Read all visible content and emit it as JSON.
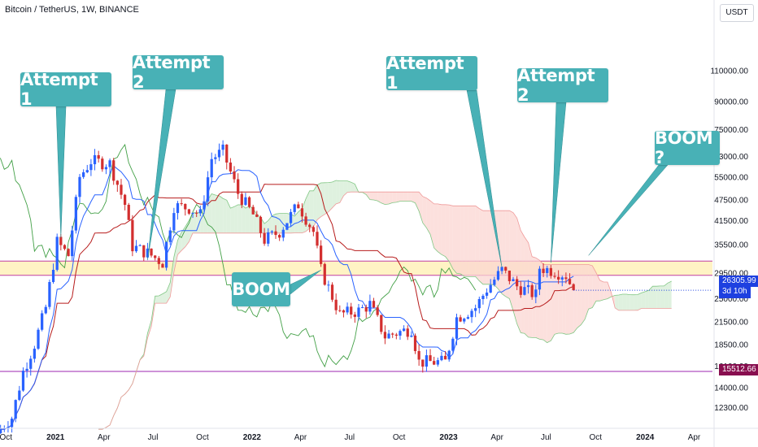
{
  "header": {
    "title": "Bitcoin / TetherUS, 1W, BINANCE",
    "currency": "USDT"
  },
  "annotations": {
    "attempt1_left": "Attempt 1",
    "attempt2_left": "Attempt 2",
    "attempt1_right": "Attempt 1",
    "attempt2_right": "Attempt 2",
    "boom": "BOOM",
    "boom_question": "BOOM ?"
  },
  "price_labels": {
    "current_price": "26305.99",
    "countdown": "3d 10h",
    "support": "15512.66"
  },
  "colors": {
    "up": "#2962ff",
    "down": "#d32f2f",
    "callout": "#48b1b6",
    "resistance_zone": "#fff3c4",
    "zone_line": "#c03fa3",
    "support_line": "#9c27b0",
    "support_label_bg": "#880e4f",
    "price_label_bg": "#1e40e0",
    "tenkan": "#2962ff",
    "kijun": "#b71c1c",
    "chikou": "#43a047",
    "cloud_bull": "#d4ecd4",
    "cloud_bear": "#fbd5d2"
  },
  "chart_data": {
    "type": "candlestick",
    "title": "Bitcoin / TetherUS, 1W, BINANCE",
    "scale": "log",
    "y_range": [
      11000,
      150000
    ],
    "y_ticks": [
      110000,
      90000,
      75000,
      63000,
      55000,
      47500,
      41500,
      35500,
      29500,
      25000,
      21500,
      18500,
      16100,
      14000,
      12300
    ],
    "y_tick_labels": [
      "110000.00",
      "90000.00",
      "75000.00",
      "63000.00",
      "55000.00",
      "47500.00",
      "41500.00",
      "35500.00",
      "29500.00",
      "25000.00",
      "21500.00",
      "18500.00",
      "16100.00",
      "14000.00",
      "12300.00"
    ],
    "x_range": [
      "2020-09-20",
      "2024-05-05"
    ],
    "x_ticks": [
      "2020-10-01",
      "2021-01-01",
      "2021-04-01",
      "2021-07-01",
      "2021-10-01",
      "2022-01-01",
      "2022-04-01",
      "2022-07-01",
      "2022-10-01",
      "2023-01-01",
      "2023-04-01",
      "2023-07-01",
      "2023-10-01",
      "2024-01-01",
      "2024-04-01"
    ],
    "x_tick_labels": [
      "Oct",
      "2021",
      "Apr",
      "Jul",
      "Oct",
      "2022",
      "Apr",
      "Jul",
      "Oct",
      "2023",
      "Apr",
      "Jul",
      "Oct",
      "2024",
      "Apr"
    ],
    "resistance_zone": [
      29000,
      31800
    ],
    "support_level": 15512.66,
    "last_price": 26305.99,
    "close_path": [
      [
        "2020-09-21",
        10700
      ],
      [
        "2020-10-12",
        11500
      ],
      [
        "2020-11-02",
        15500
      ],
      [
        "2020-11-23",
        18500
      ],
      [
        "2020-12-14",
        23500
      ],
      [
        "2021-01-04",
        36000
      ],
      [
        "2021-01-25",
        33000
      ],
      [
        "2021-02-15",
        55000
      ],
      [
        "2021-03-08",
        61000
      ],
      [
        "2021-04-12",
        60000
      ],
      [
        "2021-05-10",
        46000
      ],
      [
        "2021-05-24",
        35000
      ],
      [
        "2021-06-21",
        33500
      ],
      [
        "2021-07-19",
        31500
      ],
      [
        "2021-08-09",
        45500
      ],
      [
        "2021-09-06",
        45000
      ],
      [
        "2021-09-27",
        43000
      ],
      [
        "2021-10-18",
        62000
      ],
      [
        "2021-11-08",
        65000
      ],
      [
        "2021-12-06",
        49500
      ],
      [
        "2022-01-03",
        43000
      ],
      [
        "2022-01-24",
        36500
      ],
      [
        "2022-02-21",
        38500
      ],
      [
        "2022-03-28",
        46000
      ],
      [
        "2022-04-25",
        38500
      ],
      [
        "2022-05-09",
        30000
      ],
      [
        "2022-06-13",
        22500
      ],
      [
        "2022-07-18",
        23000
      ],
      [
        "2022-08-08",
        24000
      ],
      [
        "2022-09-05",
        19500
      ],
      [
        "2022-10-24",
        20500
      ],
      [
        "2022-11-07",
        16500
      ],
      [
        "2022-12-26",
        16500
      ],
      [
        "2023-01-16",
        22000
      ],
      [
        "2023-02-20",
        23500
      ],
      [
        "2023-03-13",
        26500
      ],
      [
        "2023-04-10",
        30000
      ],
      [
        "2023-05-08",
        27000
      ],
      [
        "2023-06-12",
        25500
      ],
      [
        "2023-06-19",
        30500
      ],
      [
        "2023-07-17",
        29800
      ],
      [
        "2023-08-07",
        29000
      ],
      [
        "2023-08-21",
        26305.99
      ]
    ],
    "series": [
      {
        "name": "Tenkan-sen"
      },
      {
        "name": "Kijun-sen"
      },
      {
        "name": "Chikou span"
      },
      {
        "name": "Kumo cloud"
      }
    ],
    "events": [
      {
        "label": "Attempt 1",
        "date": "2021-01-11",
        "price": 37000
      },
      {
        "label": "Attempt 2",
        "date": "2021-06-21",
        "price": 32000
      },
      {
        "label": "BOOM",
        "date": "2022-05-09",
        "price": 30000
      },
      {
        "label": "Attempt 1",
        "date": "2023-04-10",
        "price": 30500
      },
      {
        "label": "Attempt 2",
        "date": "2023-07-10",
        "price": 31500
      },
      {
        "label": "BOOM ?",
        "date": "2023-09-18",
        "price": 33000
      }
    ]
  }
}
